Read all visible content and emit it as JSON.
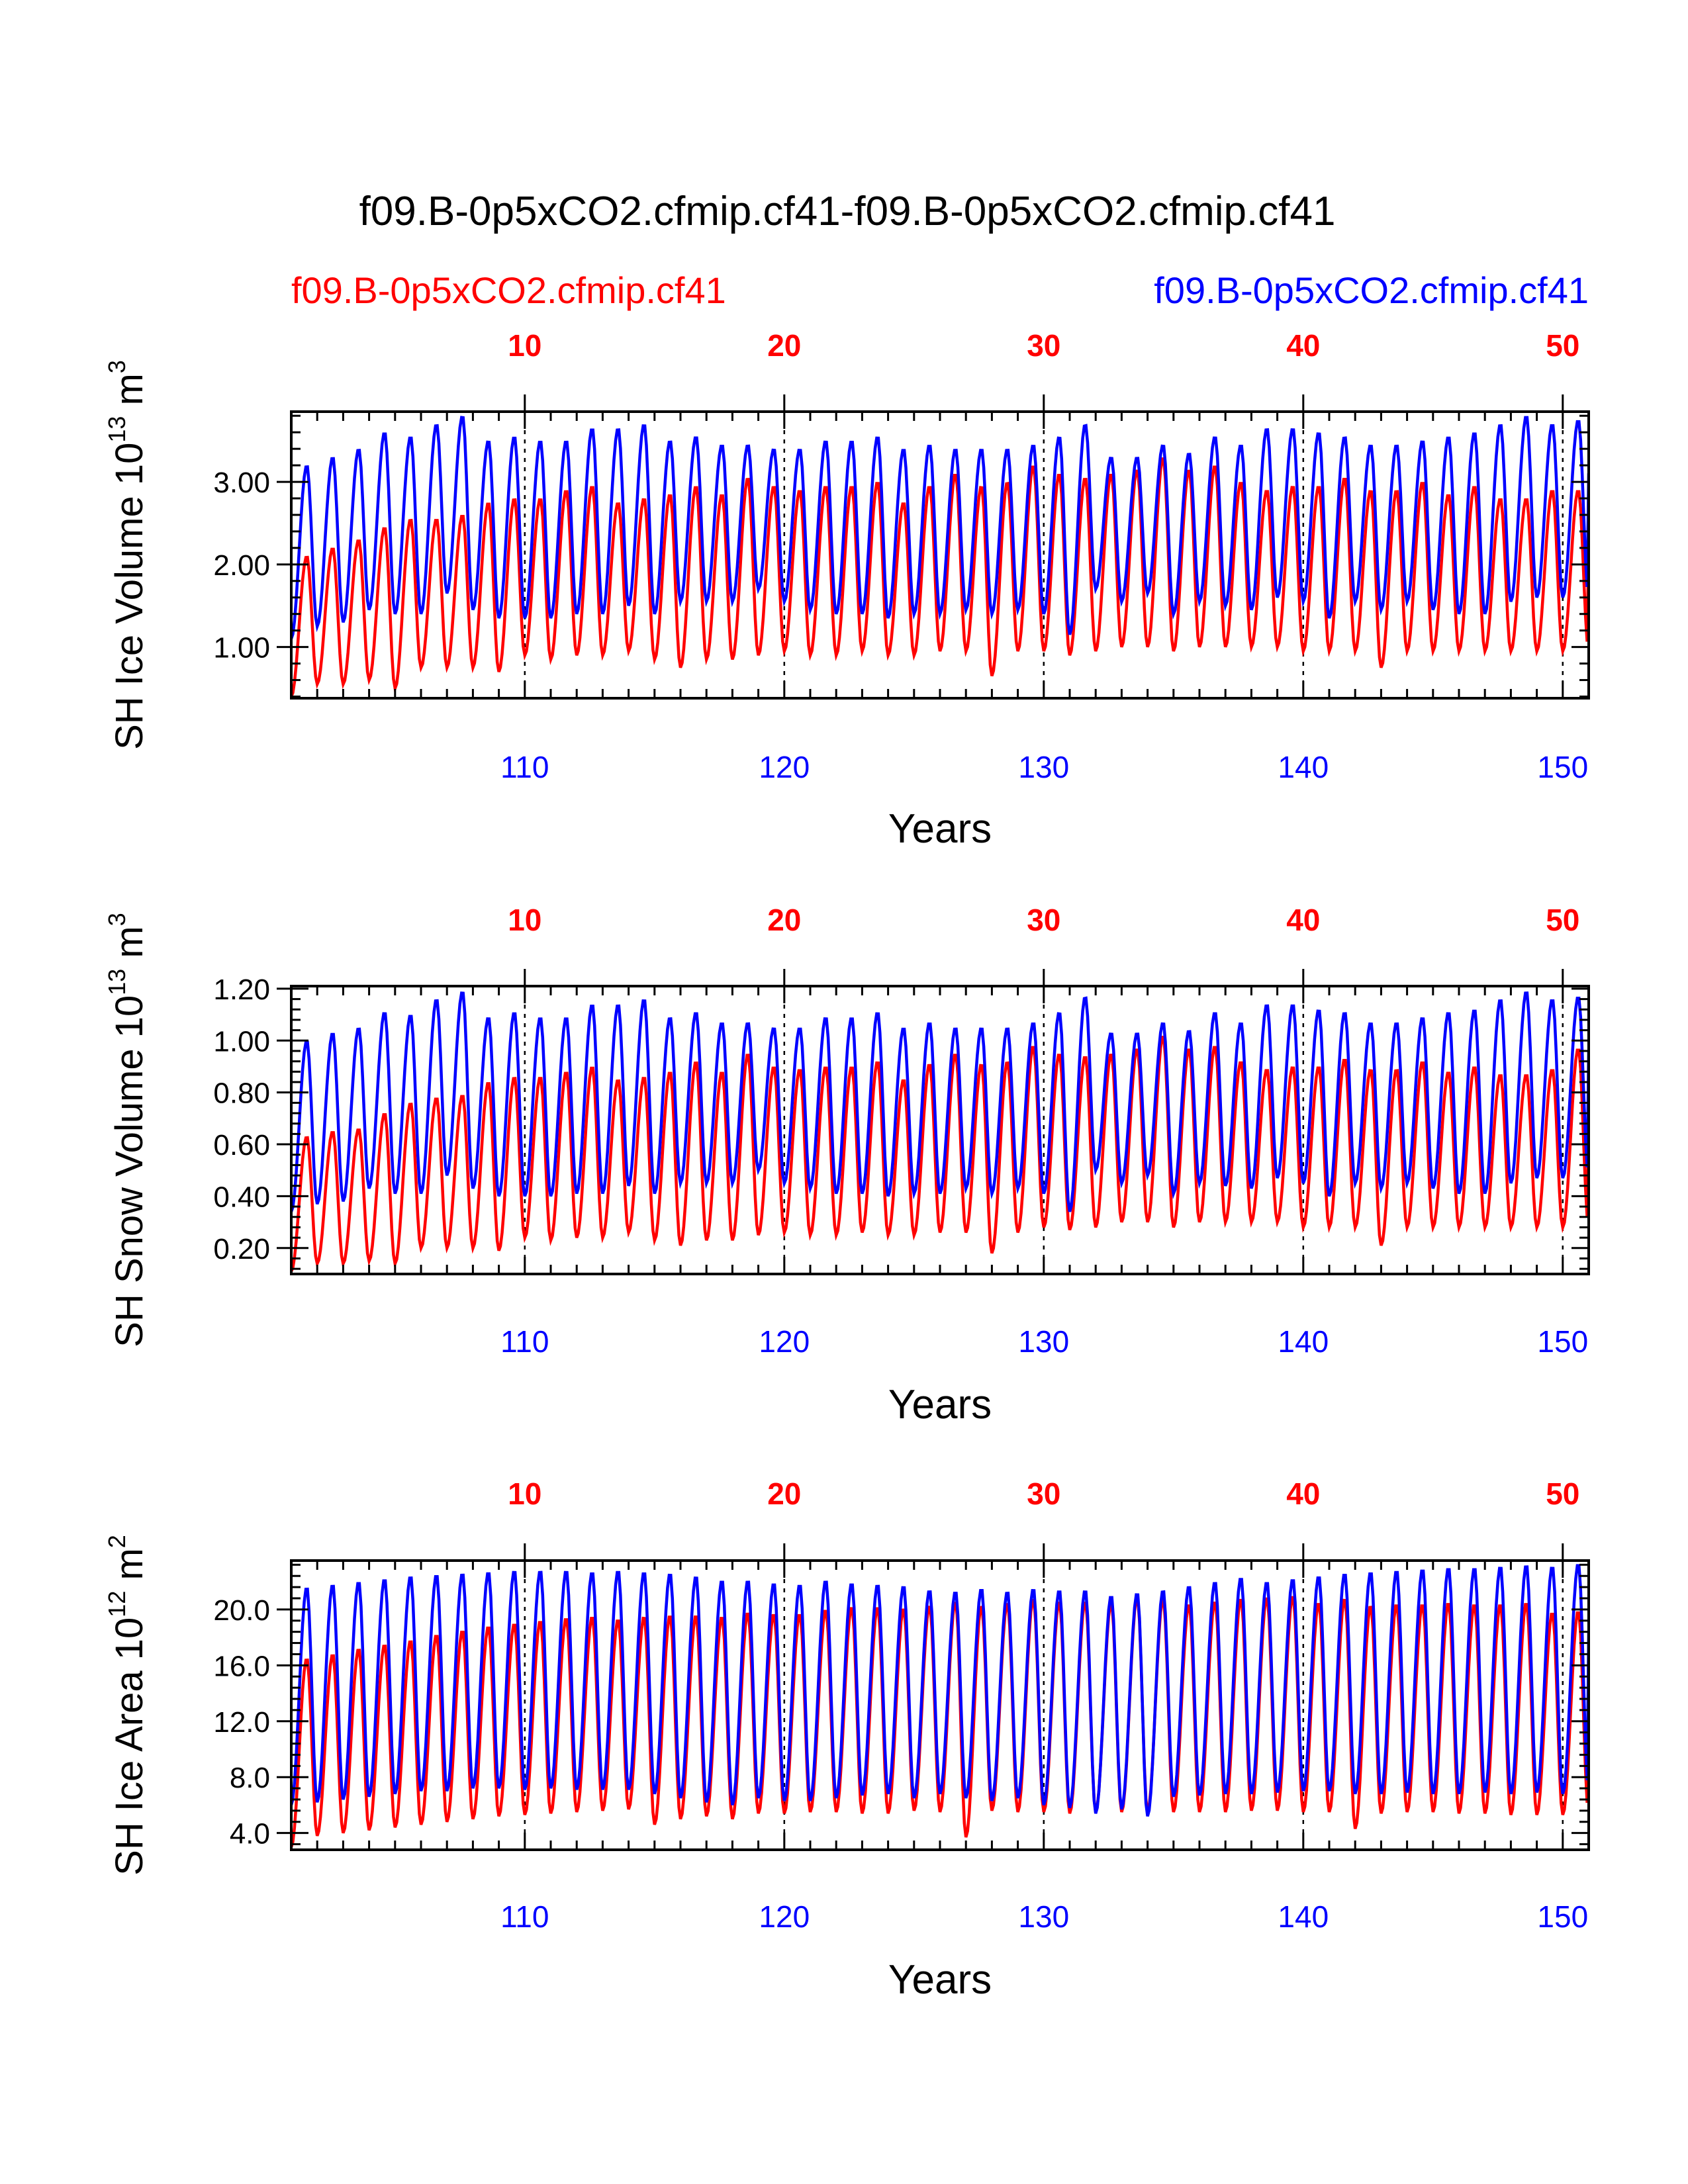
{
  "title": "f09.B-0p5xCO2.cfmip.cf41-f09.B-0p5xCO2.cfmip.cf41",
  "legend": {
    "left": {
      "label": "f09.B-0p5xCO2.cfmip.cf41",
      "color": "#ff0000"
    },
    "right": {
      "label": "f09.B-0p5xCO2.cfmip.cf41",
      "color": "#0000ff"
    }
  },
  "colors": {
    "red": "#ff0000",
    "blue": "#0000ff",
    "axis": "#000000"
  },
  "chart_data": [
    {
      "type": "line",
      "ylabel": {
        "main": "SH Ice Volume 10",
        "exp": "13",
        "unit": " m",
        "unit_exp": "3"
      },
      "xlabel": "Years",
      "xlim": [
        101,
        151
      ],
      "ylim": [
        0.38,
        3.85
      ],
      "yticks": [
        "1.00",
        "2.00",
        "3.00"
      ],
      "top_ticks": [
        "10",
        "20",
        "30",
        "40",
        "50"
      ],
      "bottom_ticks": [
        "110",
        "120",
        "130",
        "140",
        "150"
      ],
      "series": [
        {
          "color": "#ff0000",
          "peaks": [
            2.1,
            2.2,
            2.3,
            2.45,
            2.55,
            2.55,
            2.6,
            2.75,
            2.8,
            2.8,
            2.9,
            2.95,
            2.75,
            2.8,
            2.85,
            2.95,
            2.85,
            3.05,
            2.95,
            2.9,
            2.95,
            2.95,
            3.0,
            2.75,
            2.95,
            3.1,
            2.95,
            3.0,
            3.2,
            3.1,
            3.05,
            3.1,
            3.15,
            3.3,
            3.15,
            3.2,
            3.0,
            2.9,
            2.95,
            2.95,
            3.05,
            2.9,
            2.9,
            3.0,
            2.85,
            2.95,
            2.8,
            2.8,
            2.9,
            2.9
          ],
          "troughs": [
            0.4,
            0.55,
            0.55,
            0.6,
            0.5,
            0.75,
            0.75,
            0.75,
            0.7,
            0.9,
            0.85,
            0.9,
            0.9,
            0.95,
            0.85,
            0.75,
            0.85,
            0.85,
            0.9,
            0.95,
            0.9,
            0.9,
            0.95,
            0.9,
            0.9,
            0.95,
            0.95,
            0.65,
            0.95,
            0.95,
            0.9,
            0.95,
            1.0,
            1.0,
            0.95,
            1.0,
            1.0,
            1.0,
            1.0,
            0.95,
            0.95,
            0.95,
            0.75,
            0.95,
            0.95,
            0.95,
            0.95,
            0.95,
            0.95,
            0.95
          ]
        },
        {
          "color": "#0000ff",
          "peaks": [
            3.2,
            3.3,
            3.4,
            3.6,
            3.55,
            3.7,
            3.8,
            3.5,
            3.55,
            3.5,
            3.5,
            3.65,
            3.65,
            3.7,
            3.5,
            3.55,
            3.45,
            3.45,
            3.4,
            3.4,
            3.5,
            3.5,
            3.55,
            3.4,
            3.45,
            3.4,
            3.4,
            3.4,
            3.45,
            3.55,
            3.7,
            3.3,
            3.3,
            3.45,
            3.35,
            3.55,
            3.45,
            3.65,
            3.65,
            3.6,
            3.55,
            3.45,
            3.45,
            3.5,
            3.55,
            3.6,
            3.7,
            3.8,
            3.7,
            3.75
          ],
          "troughs": [
            1.1,
            1.25,
            1.3,
            1.45,
            1.4,
            1.4,
            1.65,
            1.45,
            1.35,
            1.35,
            1.35,
            1.4,
            1.4,
            1.5,
            1.4,
            1.55,
            1.55,
            1.55,
            1.7,
            1.55,
            1.45,
            1.4,
            1.4,
            1.35,
            1.4,
            1.4,
            1.45,
            1.4,
            1.45,
            1.4,
            1.15,
            1.7,
            1.55,
            1.65,
            1.4,
            1.55,
            1.5,
            1.45,
            1.6,
            1.55,
            1.35,
            1.55,
            1.45,
            1.55,
            1.45,
            1.4,
            1.4,
            1.55,
            1.6,
            1.6
          ]
        }
      ]
    },
    {
      "type": "line",
      "ylabel": {
        "main": "SH Snow Volume 10",
        "exp": "13",
        "unit": " m",
        "unit_exp": "3"
      },
      "xlabel": "Years",
      "xlim": [
        101,
        151
      ],
      "ylim": [
        0.1,
        1.21
      ],
      "yticks": [
        "0.20",
        "0.40",
        "0.60",
        "0.80",
        "1.00",
        "1.20"
      ],
      "top_ticks": [
        "10",
        "20",
        "30",
        "40",
        "50"
      ],
      "bottom_ticks": [
        "110",
        "120",
        "130",
        "140",
        "150"
      ],
      "series": [
        {
          "color": "#ff0000",
          "peaks": [
            0.63,
            0.65,
            0.66,
            0.72,
            0.76,
            0.78,
            0.79,
            0.84,
            0.86,
            0.86,
            0.88,
            0.9,
            0.85,
            0.86,
            0.88,
            0.92,
            0.88,
            0.95,
            0.9,
            0.89,
            0.9,
            0.9,
            0.92,
            0.85,
            0.91,
            0.95,
            0.91,
            0.92,
            0.98,
            0.95,
            0.94,
            0.95,
            0.97,
            1.02,
            0.97,
            0.98,
            0.92,
            0.89,
            0.9,
            0.9,
            0.93,
            0.89,
            0.89,
            0.92,
            0.88,
            0.9,
            0.87,
            0.87,
            0.89,
            0.97
          ],
          "troughs": [
            0.11,
            0.14,
            0.14,
            0.15,
            0.14,
            0.2,
            0.2,
            0.2,
            0.19,
            0.24,
            0.23,
            0.24,
            0.24,
            0.26,
            0.23,
            0.21,
            0.23,
            0.23,
            0.25,
            0.26,
            0.25,
            0.25,
            0.26,
            0.25,
            0.25,
            0.26,
            0.26,
            0.18,
            0.26,
            0.28,
            0.27,
            0.28,
            0.3,
            0.3,
            0.28,
            0.3,
            0.3,
            0.3,
            0.3,
            0.28,
            0.28,
            0.28,
            0.21,
            0.28,
            0.28,
            0.28,
            0.28,
            0.28,
            0.28,
            0.28
          ]
        },
        {
          "color": "#0000ff",
          "peaks": [
            1.0,
            1.03,
            1.05,
            1.11,
            1.1,
            1.16,
            1.19,
            1.09,
            1.11,
            1.09,
            1.09,
            1.14,
            1.14,
            1.16,
            1.09,
            1.11,
            1.07,
            1.07,
            1.05,
            1.05,
            1.09,
            1.09,
            1.11,
            1.05,
            1.07,
            1.05,
            1.05,
            1.05,
            1.07,
            1.11,
            1.17,
            1.03,
            1.03,
            1.07,
            1.04,
            1.11,
            1.07,
            1.14,
            1.14,
            1.12,
            1.11,
            1.07,
            1.07,
            1.09,
            1.11,
            1.12,
            1.16,
            1.19,
            1.16,
            1.17
          ],
          "troughs": [
            0.34,
            0.37,
            0.38,
            0.43,
            0.41,
            0.41,
            0.48,
            0.43,
            0.4,
            0.4,
            0.4,
            0.41,
            0.41,
            0.44,
            0.41,
            0.45,
            0.45,
            0.45,
            0.5,
            0.45,
            0.43,
            0.41,
            0.41,
            0.4,
            0.41,
            0.41,
            0.43,
            0.41,
            0.43,
            0.41,
            0.34,
            0.5,
            0.45,
            0.48,
            0.41,
            0.45,
            0.44,
            0.43,
            0.47,
            0.45,
            0.4,
            0.45,
            0.43,
            0.45,
            0.43,
            0.41,
            0.41,
            0.45,
            0.47,
            0.47
          ]
        }
      ]
    },
    {
      "type": "line",
      "ylabel": {
        "main": "SH Ice Area 10",
        "exp": "12",
        "unit": " m",
        "unit_exp": "2"
      },
      "xlabel": "Years",
      "xlim": [
        101,
        151
      ],
      "ylim": [
        2.8,
        23.5
      ],
      "yticks": [
        "4.0",
        "8.0",
        "12.0",
        "16.0",
        "20.0"
      ],
      "top_ticks": [
        "10",
        "20",
        "30",
        "40",
        "50"
      ],
      "bottom_ticks": [
        "110",
        "120",
        "130",
        "140",
        "150"
      ],
      "series": [
        {
          "color": "#ff0000",
          "peaks": [
            16.5,
            16.8,
            17.2,
            17.5,
            17.8,
            18.2,
            18.5,
            18.8,
            19.0,
            19.2,
            19.4,
            19.5,
            19.3,
            19.5,
            19.6,
            19.6,
            19.5,
            19.8,
            19.7,
            19.7,
            20.0,
            20.2,
            20.2,
            20.1,
            20.3,
            20.6,
            20.3,
            20.5,
            20.8,
            20.6,
            20.6,
            20.5,
            20.9,
            20.8,
            20.4,
            20.6,
            20.8,
            20.9,
            21.0,
            20.5,
            20.8,
            20.3,
            20.4,
            20.4,
            20.5,
            20.4,
            20.4,
            20.5,
            19.8,
            19.9
          ],
          "troughs": [
            3.0,
            3.8,
            4.0,
            4.2,
            4.4,
            4.6,
            4.8,
            5.0,
            5.2,
            5.3,
            5.4,
            5.5,
            5.6,
            5.7,
            4.6,
            5.0,
            5.2,
            5.0,
            5.4,
            5.4,
            5.5,
            5.5,
            5.4,
            5.4,
            5.6,
            5.5,
            3.7,
            5.6,
            5.5,
            5.5,
            5.4,
            5.5,
            5.5,
            5.5,
            5.5,
            5.5,
            5.5,
            5.6,
            5.6,
            5.5,
            5.5,
            4.3,
            5.4,
            5.5,
            5.5,
            5.4,
            5.4,
            5.3,
            5.3,
            5.3
          ]
        },
        {
          "color": "#0000ff",
          "peaks": [
            21.6,
            21.8,
            22.0,
            22.2,
            22.4,
            22.5,
            22.6,
            22.7,
            22.8,
            22.8,
            22.8,
            22.7,
            22.8,
            22.7,
            22.6,
            22.4,
            22.1,
            22.1,
            21.9,
            21.8,
            22.1,
            21.9,
            21.8,
            21.7,
            21.4,
            21.3,
            21.5,
            21.3,
            21.5,
            21.4,
            21.4,
            21.0,
            21.2,
            21.4,
            21.7,
            22.0,
            22.3,
            22.0,
            22.2,
            22.4,
            22.6,
            22.7,
            22.8,
            22.9,
            23.0,
            23.0,
            23.1,
            23.2,
            23.1,
            23.3
          ],
          "troughs": [
            6.0,
            6.2,
            6.4,
            6.6,
            6.8,
            7.0,
            7.0,
            7.2,
            7.2,
            7.1,
            7.2,
            7.1,
            7.1,
            7.1,
            6.8,
            6.5,
            6.2,
            6.0,
            6.5,
            6.3,
            6.3,
            6.5,
            6.7,
            6.8,
            6.5,
            6.8,
            6.5,
            6.3,
            6.5,
            6.0,
            5.8,
            5.4,
            5.7,
            5.2,
            6.6,
            6.7,
            6.8,
            6.8,
            6.9,
            7.0,
            7.0,
            6.8,
            6.8,
            6.9,
            6.8,
            6.8,
            6.9,
            6.8,
            6.9,
            6.8
          ]
        }
      ]
    }
  ]
}
